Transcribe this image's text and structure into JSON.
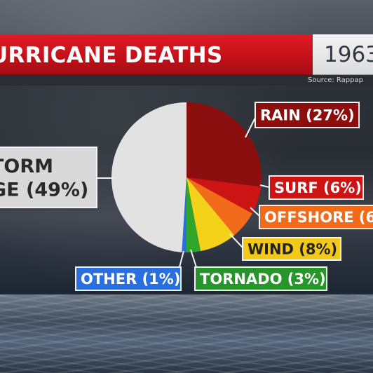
{
  "header": {
    "title": "URRICANE DEATHS",
    "year": "1963",
    "source": "Source: Rappap"
  },
  "chart_data": {
    "type": "pie",
    "title": "URRICANE DEATHS",
    "slices": [
      {
        "label": "RAIN (27%)",
        "value": 27,
        "color": "#8b0f0f",
        "box_color": "#8b0f0f",
        "text_color": "#ffffff"
      },
      {
        "label": "SURF (6%)",
        "value": 6,
        "color": "#cc1414",
        "box_color": "#cc1414",
        "text_color": "#ffffff"
      },
      {
        "label": "OFFSHORE (6",
        "value": 6,
        "color": "#f26b1a",
        "box_color": "#f26b1a",
        "text_color": "#ffffff"
      },
      {
        "label": "WIND (8%)",
        "value": 8,
        "color": "#f5d21a",
        "box_color": "#f2c81a",
        "text_color": "#222222"
      },
      {
        "label": "TORNADO (3%)",
        "value": 3,
        "color": "#2fa52a",
        "box_color": "#27962a",
        "text_color": "#ffffff"
      },
      {
        "label": "OTHER (1%)",
        "value": 1,
        "color": "#2a6fe0",
        "box_color": "#2a6fe0",
        "text_color": "#ffffff"
      },
      {
        "label_lines": [
          "TORM",
          "GE (49%)"
        ],
        "value": 49,
        "color": "#e2e2e2",
        "box_color": "#d9d9d9",
        "text_color": "#2a2a2a"
      }
    ]
  }
}
